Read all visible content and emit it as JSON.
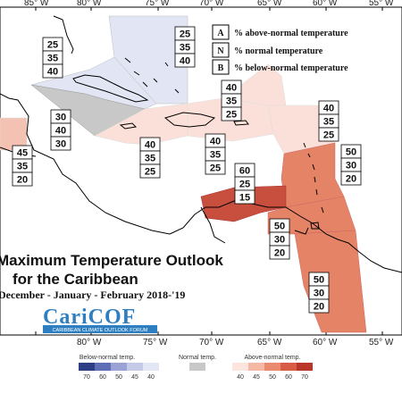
{
  "longitudes_top": [
    "85° W",
    "80° W",
    "75° W",
    "70° W",
    "65° W",
    "60° W",
    "55° W"
  ],
  "longitudes_bottom": [
    "80° W",
    "75° W",
    "70° W",
    "65° W",
    "60° W",
    "55° W"
  ],
  "legend": {
    "a": {
      "letter": "A",
      "text": "% above-normal temperature"
    },
    "n": {
      "letter": "N",
      "text": "% normal temperature"
    },
    "b": {
      "letter": "B",
      "text": "% below-normal temperature"
    }
  },
  "title": {
    "line1": "Maximum Temperature Outlook",
    "line2": "for the Caribbean",
    "line3": "December - January - February 2018-'19"
  },
  "logo": {
    "name": "CariCOF",
    "tagline": "CARIBBEAN CLIMATE OUTLOOK FORUM"
  },
  "colorbar": {
    "below_label": "Below-normal temp.",
    "normal_label": "Normal temp.",
    "above_label": "Above-normal temp.",
    "below_ticks": [
      "70",
      "60",
      "50",
      "45",
      "40"
    ],
    "above_ticks": [
      "40",
      "45",
      "50",
      "60",
      "70"
    ],
    "colors": {
      "below": [
        "#2f3f86",
        "#5f6fb5",
        "#9aa3d3",
        "#c5cbe6",
        "#e3e6f4"
      ],
      "normal": "#c8c8c8",
      "above": [
        "#fbe5de",
        "#f4b8a5",
        "#ea8a6f",
        "#d95d44",
        "#b9362a"
      ]
    }
  },
  "regions": [
    {
      "id": "bahamas-region",
      "color": "#e2e6f4",
      "a": "25",
      "n": "35",
      "b": "40"
    },
    {
      "id": "cuba-region",
      "color": "#e2e6f4",
      "a": "25",
      "n": "35",
      "b": "40"
    },
    {
      "id": "cayman-region",
      "color": "#c8c8c8",
      "a": "30",
      "n": "40",
      "b": "30"
    },
    {
      "id": "belize-region",
      "color": "#f4c2b2",
      "a": "45",
      "n": "35",
      "b": "20"
    },
    {
      "id": "jamaica-region",
      "color": "#fae0d8",
      "a": "40",
      "n": "35",
      "b": "25"
    },
    {
      "id": "hispaniola-region",
      "color": "#fae0d8",
      "a": "40",
      "n": "35",
      "b": "25"
    },
    {
      "id": "north-antilles-region",
      "color": "#fae0d8",
      "a": "40",
      "n": "35",
      "b": "25"
    },
    {
      "id": "north-atlantic-antilles",
      "color": "#fae0d8",
      "a": "40",
      "n": "35",
      "b": "25"
    },
    {
      "id": "leeward-region",
      "color": "#e58366",
      "a": "50",
      "n": "30",
      "b": "20"
    },
    {
      "id": "aruba-region",
      "color": "#c84f3d",
      "a": "60",
      "n": "25",
      "b": "15"
    },
    {
      "id": "trinidad-region",
      "color": "#e58366",
      "a": "50",
      "n": "30",
      "b": "20"
    },
    {
      "id": "guianas-region",
      "color": "#e58366",
      "a": "50",
      "n": "30",
      "b": "20"
    }
  ]
}
